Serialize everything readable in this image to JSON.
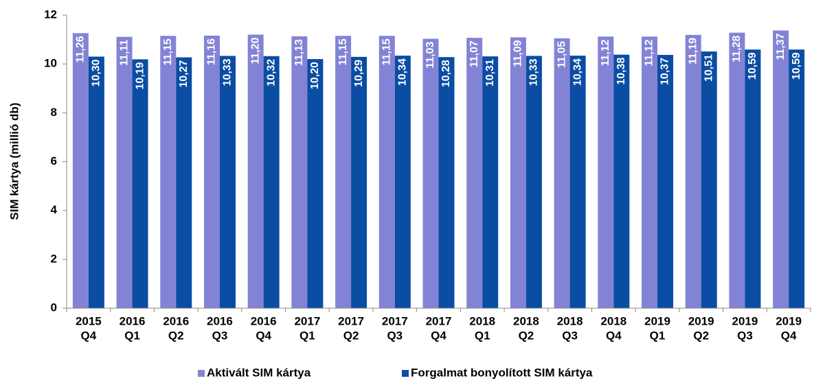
{
  "chart_data": {
    "type": "bar",
    "ylabel": "SIM kártya (millió db)",
    "categories": [
      [
        "2015",
        "Q4"
      ],
      [
        "2016",
        "Q1"
      ],
      [
        "2016",
        "Q2"
      ],
      [
        "2016",
        "Q3"
      ],
      [
        "2016",
        "Q4"
      ],
      [
        "2017",
        "Q1"
      ],
      [
        "2017",
        "Q2"
      ],
      [
        "2017",
        "Q3"
      ],
      [
        "2017",
        "Q4"
      ],
      [
        "2018",
        "Q1"
      ],
      [
        "2018",
        "Q2"
      ],
      [
        "2018",
        "Q3"
      ],
      [
        "2018",
        "Q4"
      ],
      [
        "2019",
        "Q1"
      ],
      [
        "2019",
        "Q2"
      ],
      [
        "2019",
        "Q3"
      ],
      [
        "2019",
        "Q4"
      ]
    ],
    "series": [
      {
        "name": "Aktivált SIM kártya",
        "color": "#8383d6",
        "values": [
          11.26,
          11.11,
          11.15,
          11.16,
          11.2,
          11.13,
          11.15,
          11.15,
          11.03,
          11.07,
          11.09,
          11.05,
          11.12,
          11.12,
          11.19,
          11.28,
          11.37
        ],
        "value_labels": [
          "11,26",
          "11,11",
          "11,15",
          "11,16",
          "11,20",
          "11,13",
          "11,15",
          "11,15",
          "11,03",
          "11,07",
          "11,09",
          "11,05",
          "11,12",
          "11,12",
          "11,19",
          "11,28",
          "11,37"
        ]
      },
      {
        "name": "Forgalmat bonyolított SIM kártya",
        "color": "#0a4da3",
        "values": [
          10.3,
          10.19,
          10.27,
          10.33,
          10.32,
          10.2,
          10.29,
          10.34,
          10.28,
          10.31,
          10.33,
          10.34,
          10.38,
          10.37,
          10.51,
          10.59,
          10.59
        ],
        "value_labels": [
          "10,30",
          "10,19",
          "10,27",
          "10,33",
          "10,32",
          "10,20",
          "10,29",
          "10,34",
          "10,28",
          "10,31",
          "10,33",
          "10,34",
          "10,38",
          "10,37",
          "10,51",
          "10,59",
          "10,59"
        ]
      }
    ],
    "ylim": [
      0,
      12
    ],
    "yticks": [
      0,
      2,
      4,
      6,
      8,
      10,
      12
    ],
    "grid": false,
    "legend": "bottom"
  }
}
